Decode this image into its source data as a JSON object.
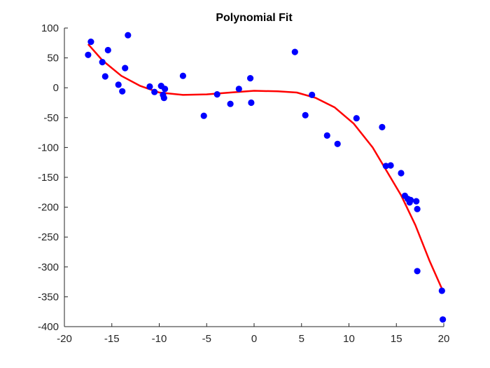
{
  "chart_data": {
    "type": "scatter",
    "title": "Polynomial Fit",
    "xlabel": "",
    "ylabel": "",
    "xlim": [
      -20,
      20
    ],
    "ylim": [
      -400,
      100
    ],
    "xticks": [
      -20,
      -15,
      -10,
      -5,
      0,
      5,
      10,
      15,
      20
    ],
    "yticks": [
      100,
      50,
      0,
      -50,
      -100,
      -150,
      -200,
      -250,
      -300,
      -350,
      -400
    ],
    "grid": false,
    "legend": "none",
    "colors": {
      "points": "#0000ff",
      "fit": "#ff0000",
      "axes": "#262626"
    },
    "series": [
      {
        "type": "scatter",
        "x": [
          -17.5,
          -17.2,
          -16.0,
          -15.7,
          -15.4,
          -14.3,
          -13.9,
          -13.6,
          -13.3,
          -11.0,
          -10.5,
          -9.8,
          -9.6,
          -9.5,
          -9.4,
          -7.5,
          -5.3,
          -3.9,
          -2.5,
          -1.6,
          -0.4,
          -0.3,
          4.3,
          5.4,
          6.1,
          7.7,
          8.8,
          10.8,
          13.5,
          13.9,
          14.4,
          15.5,
          15.9,
          16.2,
          16.4,
          16.5,
          17.1,
          17.2,
          17.2,
          19.8,
          19.9
        ],
        "y": [
          55,
          77,
          43,
          19,
          63,
          5,
          -6,
          33,
          88,
          2,
          -7,
          3,
          -12,
          -17,
          -2,
          20,
          -47,
          -11,
          -27,
          -2,
          16,
          -25,
          60,
          -46,
          -12,
          -80,
          -94,
          -51,
          -66,
          -131,
          -130,
          -143,
          -181,
          -186,
          -192,
          -188,
          -190,
          -203,
          -307,
          -340,
          -388
        ]
      },
      {
        "type": "line",
        "x": [
          -17.5,
          -16.0,
          -14.0,
          -12.0,
          -10.0,
          -7.5,
          -5.0,
          -2.5,
          0,
          2.5,
          4.5,
          6.5,
          8.5,
          10.5,
          12.5,
          14.0,
          15.5,
          17.0,
          18.5,
          19.9
        ],
        "y": [
          73,
          46,
          20,
          3,
          -8,
          -12,
          -11,
          -8,
          -5,
          -6,
          -8,
          -17,
          -33,
          -60,
          -100,
          -140,
          -180,
          -230,
          -290,
          -340
        ]
      }
    ]
  }
}
